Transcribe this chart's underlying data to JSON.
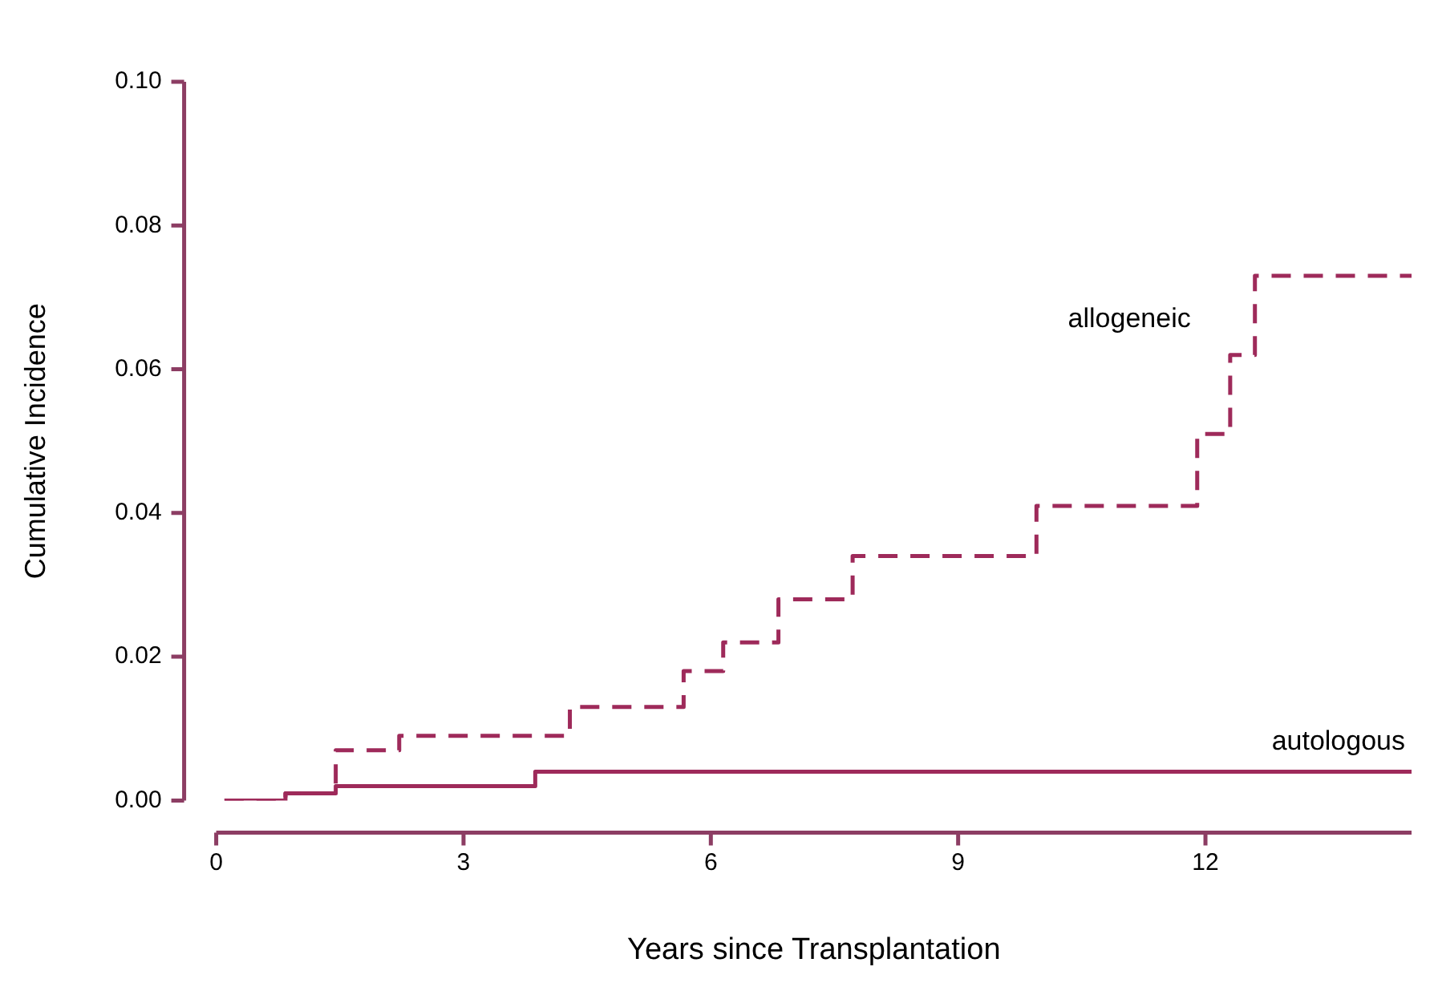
{
  "chart_data": {
    "type": "step",
    "xlabel": "Years since Transplantation",
    "ylabel": "Cumulative Incidence",
    "xlim": [
      0,
      14.5
    ],
    "xticks": [
      0,
      3,
      6,
      9,
      12
    ],
    "ylim": [
      0,
      0.1
    ],
    "yticks": [
      {
        "value": 0,
        "label": "0.00"
      },
      0.02,
      0.04,
      0.06,
      0.08,
      {
        "value": 0.1,
        "label": "0.10"
      }
    ],
    "grid": false,
    "legend": false,
    "marker": "none",
    "series": [
      {
        "name": "allogeneic",
        "color": "#9e2a5a",
        "line_style": "dashed",
        "x": [
          0.1,
          0.84,
          1.45,
          2.22,
          4.29,
          5.67,
          6.15,
          6.82,
          7.72,
          9.95,
          11.9,
          12.3,
          12.6,
          14.5
        ],
        "values": [
          0,
          0.001,
          0.007,
          0.009,
          0.013,
          0.018,
          0.022,
          0.028,
          0.034,
          0.041,
          0.051,
          0.062,
          0.073,
          0.073
        ]
      },
      {
        "name": "autologous",
        "color": "#9e2a5a",
        "line_style": "solid",
        "x": [
          0.1,
          0.84,
          1.45,
          3.87,
          14.5
        ],
        "values": [
          0,
          0.001,
          0.002,
          0.004,
          0.004
        ]
      }
    ]
  }
}
